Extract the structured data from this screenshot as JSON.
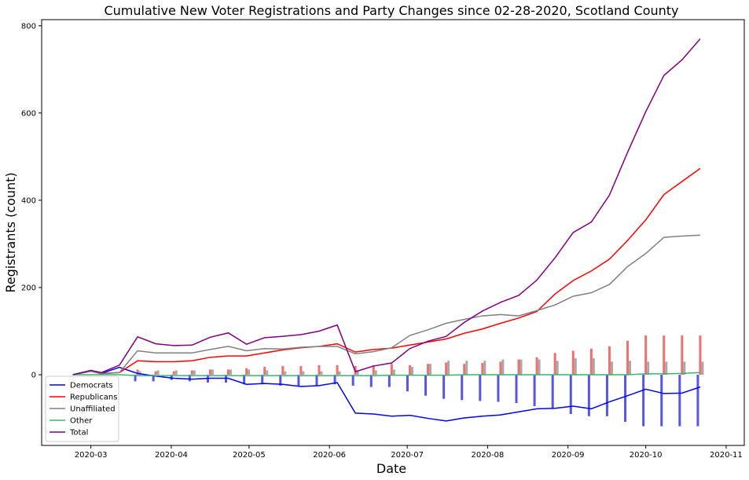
{
  "chart_data": {
    "type": "line",
    "title": "Cumulative New Voter Registrations and Party Changes since 02-28-2020, Scotland County",
    "xlabel": "Date",
    "ylabel": "Registrants (count)",
    "x": [
      "2020-02-23",
      "2020-03-01",
      "2020-03-05",
      "2020-03-12",
      "2020-03-19",
      "2020-03-26",
      "2020-04-02",
      "2020-04-09",
      "2020-04-16",
      "2020-04-23",
      "2020-04-30",
      "2020-05-07",
      "2020-05-14",
      "2020-05-21",
      "2020-05-28",
      "2020-06-04",
      "2020-06-11",
      "2020-06-18",
      "2020-06-25",
      "2020-07-02",
      "2020-07-09",
      "2020-07-16",
      "2020-07-23",
      "2020-07-30",
      "2020-08-06",
      "2020-08-13",
      "2020-08-20",
      "2020-08-27",
      "2020-09-03",
      "2020-09-10",
      "2020-09-17",
      "2020-09-24",
      "2020-10-01",
      "2020-10-08",
      "2020-10-15",
      "2020-10-22"
    ],
    "series": [
      {
        "name": "Democrats",
        "color": "#0000ff",
        "values": [
          0,
          10,
          3,
          17,
          3,
          -3,
          -8,
          -10,
          -8,
          -8,
          -22,
          -20,
          -22,
          -27,
          -25,
          -18,
          -88,
          -90,
          -95,
          -93,
          -100,
          -106,
          -99,
          -95,
          -92,
          -85,
          -78,
          -77,
          -72,
          -78,
          -62,
          -48,
          -33,
          -43,
          -42,
          -28
        ]
      },
      {
        "name": "Republicans",
        "color": "#ff0000",
        "values": [
          0,
          8,
          3,
          5,
          32,
          30,
          30,
          32,
          40,
          43,
          43,
          50,
          57,
          62,
          65,
          71,
          52,
          58,
          61,
          68,
          75,
          82,
          95,
          105,
          118,
          130,
          145,
          185,
          216,
          238,
          265,
          308,
          355,
          413,
          443,
          473
        ]
      },
      {
        "name": "Unaffiliated",
        "color": "#808080",
        "values": [
          0,
          8,
          2,
          5,
          55,
          50,
          50,
          50,
          58,
          65,
          55,
          60,
          59,
          63,
          65,
          65,
          48,
          53,
          62,
          90,
          103,
          118,
          127,
          135,
          138,
          135,
          147,
          160,
          180,
          188,
          207,
          248,
          278,
          315,
          318,
          320
        ]
      },
      {
        "name": "Other",
        "color": "#3cb371",
        "values": [
          0,
          0,
          0,
          0,
          -2,
          -2,
          -2,
          -2,
          -2,
          -2,
          -2,
          -2,
          -2,
          -2,
          -2,
          -2,
          -2,
          -2,
          -1,
          -1,
          -1,
          -1,
          0,
          0,
          0,
          0,
          0,
          0,
          0,
          0,
          0,
          0,
          2,
          2,
          3,
          5
        ]
      },
      {
        "name": "Total",
        "color": "#800080",
        "values": [
          0,
          10,
          5,
          22,
          87,
          71,
          67,
          68,
          86,
          96,
          70,
          85,
          88,
          92,
          100,
          114,
          7,
          20,
          27,
          60,
          77,
          88,
          120,
          146,
          166,
          182,
          217,
          268,
          326,
          350,
          412,
          510,
          603,
          686,
          722,
          770
        ]
      }
    ],
    "bar_series": [
      {
        "color": "#5555ee",
        "values": [
          null,
          null,
          null,
          null,
          -15,
          -15,
          -12,
          -15,
          -18,
          -18,
          -22,
          -22,
          -25,
          -27,
          -25,
          -22,
          -25,
          -28,
          -28,
          -38,
          -48,
          -55,
          -58,
          -60,
          -62,
          -65,
          -72,
          -78,
          -90,
          -95,
          -95,
          -108,
          -118,
          -118,
          -118,
          -118
        ]
      },
      {
        "color": "#f07070",
        "values": [
          null,
          null,
          null,
          null,
          12,
          8,
          8,
          10,
          12,
          12,
          15,
          18,
          20,
          20,
          22,
          22,
          20,
          22,
          25,
          22,
          25,
          28,
          25,
          27,
          30,
          35,
          40,
          50,
          55,
          60,
          65,
          78,
          90,
          90,
          90,
          90
        ]
      },
      {
        "color": "#a9a9a9",
        "values": [
          null,
          null,
          null,
          null,
          8,
          10,
          10,
          10,
          12,
          12,
          12,
          10,
          8,
          8,
          8,
          8,
          8,
          10,
          12,
          18,
          25,
          32,
          32,
          32,
          35,
          35,
          35,
          32,
          38,
          38,
          30,
          32,
          30,
          30,
          30,
          30
        ]
      }
    ],
    "xlim": [
      "2020-02-11",
      "2020-11-08"
    ],
    "xticks": [
      {
        "value": "2020-03-01",
        "label": "2020-03"
      },
      {
        "value": "2020-04-01",
        "label": "2020-04"
      },
      {
        "value": "2020-05-01",
        "label": "2020-05"
      },
      {
        "value": "2020-06-01",
        "label": "2020-06"
      },
      {
        "value": "2020-07-01",
        "label": "2020-07"
      },
      {
        "value": "2020-08-01",
        "label": "2020-08"
      },
      {
        "value": "2020-09-01",
        "label": "2020-09"
      },
      {
        "value": "2020-10-01",
        "label": "2020-10"
      },
      {
        "value": "2020-11-01",
        "label": "2020-11"
      }
    ],
    "ylim": [
      -162,
      814
    ],
    "yticks": [
      0,
      200,
      400,
      600,
      800
    ],
    "legend": "lower left"
  }
}
